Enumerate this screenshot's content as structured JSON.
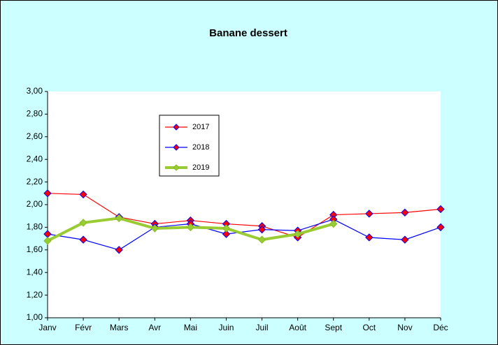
{
  "chart_data": {
    "type": "line",
    "title": "Banane dessert",
    "categories": [
      "Janv",
      "Févr",
      "Mars",
      "Avr",
      "Mai",
      "Juin",
      "Juil",
      "Août",
      "Sept",
      "Oct",
      "Nov",
      "Déc"
    ],
    "series": [
      {
        "name": "2017",
        "color": "#ff0000",
        "marker_color": "#ff0000",
        "marker_edge": "#0000ff",
        "line_width": 1.2,
        "values": [
          2.1,
          2.09,
          1.89,
          1.83,
          1.86,
          1.83,
          1.81,
          1.71,
          1.91,
          1.92,
          1.93,
          1.96
        ]
      },
      {
        "name": "2018",
        "color": "#0000ff",
        "marker_color": "#ff0000",
        "marker_edge": "#0000ff",
        "line_width": 1.2,
        "values": [
          1.74,
          1.69,
          1.6,
          1.8,
          1.83,
          1.74,
          1.78,
          1.77,
          1.87,
          1.71,
          1.69,
          1.8
        ]
      },
      {
        "name": "2019",
        "color": "#99cc33",
        "marker_color": "#99cc33",
        "marker_edge": "#88bb22",
        "line_width": 4,
        "values": [
          1.68,
          1.84,
          1.88,
          1.79,
          1.8,
          1.79,
          1.69,
          1.74,
          1.83,
          null,
          null,
          null
        ]
      }
    ],
    "ylim": [
      1.0,
      3.0
    ],
    "yticks": [
      {
        "value": 1.0,
        "label": "1,00"
      },
      {
        "value": 1.2,
        "label": "1,20"
      },
      {
        "value": 1.4,
        "label": "1,40"
      },
      {
        "value": 1.6,
        "label": "1,60"
      },
      {
        "value": 1.8,
        "label": "1,80"
      },
      {
        "value": 2.0,
        "label": "2,00"
      },
      {
        "value": 2.2,
        "label": "2,20"
      },
      {
        "value": 2.4,
        "label": "2,40"
      },
      {
        "value": 2.6,
        "label": "2,60"
      },
      {
        "value": 2.8,
        "label": "2,80"
      },
      {
        "value": 3.0,
        "label": "3,00"
      }
    ],
    "grid": false
  }
}
